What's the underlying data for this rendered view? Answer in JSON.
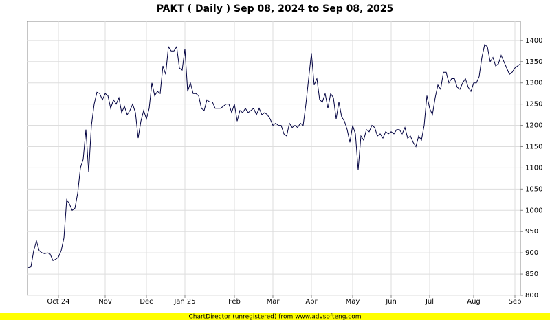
{
  "chart_data": {
    "type": "line",
    "title": "PAKT ( Daily ) Sep 08, 2024 to Sep 08, 2025",
    "categories": [
      null,
      null,
      null,
      null,
      null,
      null,
      null,
      null,
      null,
      null,
      null,
      "Oct 24",
      null,
      null,
      null,
      null,
      null,
      null,
      null,
      null,
      null,
      null,
      null,
      null,
      null,
      null,
      null,
      null,
      "Nov",
      null,
      null,
      null,
      null,
      null,
      null,
      null,
      null,
      null,
      null,
      null,
      null,
      null,
      null,
      "Dec",
      null,
      null,
      null,
      null,
      null,
      null,
      null,
      null,
      null,
      null,
      null,
      null,
      null,
      "Jan 25",
      null,
      null,
      null,
      null,
      null,
      null,
      null,
      null,
      null,
      null,
      null,
      null,
      null,
      null,
      null,
      null,
      null,
      "Feb",
      null,
      null,
      null,
      null,
      null,
      null,
      null,
      null,
      null,
      null,
      null,
      null,
      null,
      "Mar",
      null,
      null,
      null,
      null,
      null,
      null,
      null,
      null,
      null,
      null,
      null,
      null,
      null,
      "Apr",
      null,
      null,
      null,
      null,
      null,
      null,
      null,
      null,
      null,
      null,
      null,
      null,
      null,
      null,
      "May",
      null,
      null,
      null,
      null,
      null,
      null,
      null,
      null,
      null,
      null,
      null,
      null,
      null,
      "Jun",
      null,
      null,
      null,
      null,
      null,
      null,
      null,
      null,
      null,
      null,
      null,
      null,
      null,
      "Jul",
      null,
      null,
      null,
      null,
      null,
      null,
      null,
      null,
      null,
      null,
      null,
      null,
      null,
      null,
      null,
      "Aug",
      null,
      null,
      null,
      null,
      null,
      null,
      null,
      null,
      null,
      null,
      null,
      null,
      null,
      null,
      "Sep",
      null,
      null
    ],
    "series": [
      {
        "color": "#000040",
        "values": [
          865,
          867,
          905,
          928,
          905,
          900,
          898,
          900,
          897,
          882,
          885,
          890,
          905,
          935,
          1025,
          1015,
          1000,
          1005,
          1040,
          1100,
          1120,
          1190,
          1090,
          1200,
          1250,
          1278,
          1275,
          1260,
          1275,
          1270,
          1240,
          1260,
          1250,
          1265,
          1230,
          1245,
          1225,
          1235,
          1250,
          1230,
          1170,
          1210,
          1235,
          1215,
          1240,
          1300,
          1270,
          1280,
          1275,
          1340,
          1320,
          1385,
          1375,
          1375,
          1385,
          1335,
          1330,
          1380,
          1280,
          1300,
          1275,
          1275,
          1270,
          1240,
          1235,
          1260,
          1255,
          1255,
          1240,
          1240,
          1240,
          1245,
          1250,
          1250,
          1230,
          1250,
          1210,
          1235,
          1230,
          1240,
          1230,
          1235,
          1240,
          1225,
          1240,
          1225,
          1230,
          1225,
          1215,
          1200,
          1205,
          1200,
          1200,
          1180,
          1175,
          1205,
          1195,
          1200,
          1195,
          1205,
          1200,
          1250,
          1310,
          1370,
          1295,
          1310,
          1260,
          1255,
          1275,
          1240,
          1275,
          1265,
          1215,
          1255,
          1220,
          1210,
          1190,
          1160,
          1200,
          1180,
          1095,
          1175,
          1165,
          1190,
          1185,
          1200,
          1195,
          1175,
          1180,
          1170,
          1185,
          1180,
          1185,
          1180,
          1190,
          1190,
          1180,
          1195,
          1170,
          1175,
          1160,
          1150,
          1175,
          1165,
          1200,
          1270,
          1240,
          1225,
          1265,
          1295,
          1285,
          1325,
          1325,
          1300,
          1310,
          1310,
          1290,
          1285,
          1300,
          1310,
          1290,
          1280,
          1300,
          1300,
          1315,
          1360,
          1390,
          1385,
          1350,
          1360,
          1340,
          1345,
          1365,
          1350,
          1335,
          1320,
          1325,
          1335,
          1340,
          1345
        ]
      }
    ],
    "ylim": [
      800,
      1445
    ],
    "yticks": [
      800,
      850,
      900,
      950,
      1000,
      1050,
      1100,
      1150,
      1200,
      1250,
      1300,
      1350,
      1400
    ],
    "grid": true,
    "footer": "ChartDirector (unregistered) from www.advsofteng.com"
  }
}
